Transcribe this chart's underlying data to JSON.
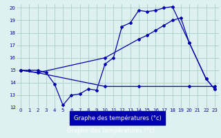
{
  "bg_color": "#dff0f0",
  "grid_color": "#aacccc",
  "line_color": "#0000aa",
  "xlabel": "Graphe des températures (°c)",
  "xlim": [
    -0.5,
    23.5
  ],
  "ylim": [
    12,
    20.3
  ],
  "yticks": [
    12,
    13,
    14,
    15,
    16,
    17,
    18,
    19,
    20
  ],
  "xticks": [
    0,
    1,
    2,
    3,
    4,
    5,
    6,
    7,
    8,
    9,
    10,
    11,
    12,
    13,
    14,
    15,
    16,
    17,
    18,
    19,
    20,
    21,
    22,
    23
  ],
  "series1_x": [
    0,
    1,
    2,
    3,
    4,
    5,
    6,
    7,
    8,
    9,
    10,
    11,
    12,
    13,
    14,
    15,
    16,
    17,
    18,
    20,
    22,
    23
  ],
  "series1_y": [
    15,
    15,
    15,
    14.8,
    13.9,
    12.2,
    13.0,
    13.1,
    13.5,
    13.4,
    15.5,
    16.0,
    18.5,
    18.8,
    19.8,
    19.7,
    19.8,
    20.0,
    20.1,
    17.2,
    14.3,
    13.5
  ],
  "series2_x": [
    0,
    2,
    10,
    14,
    15,
    16,
    17,
    18,
    19,
    20,
    22,
    23
  ],
  "series2_y": [
    15,
    14.8,
    16.0,
    17.5,
    17.8,
    18.2,
    18.6,
    19.0,
    19.2,
    17.2,
    14.3,
    13.5
  ],
  "series3_x": [
    0,
    2,
    10,
    14,
    20,
    23
  ],
  "series3_y": [
    15,
    14.8,
    13.7,
    13.7,
    13.7,
    13.7
  ],
  "xlabel_bg": "#0000aa",
  "xlabel_color": "#ffffff"
}
